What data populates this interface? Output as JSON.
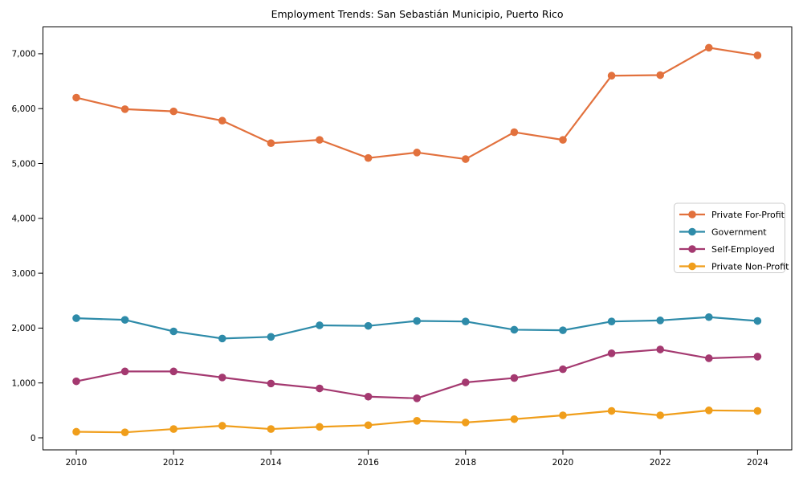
{
  "title": "Employment Trends: San Sebastián Municipio, Puerto Rico",
  "chart_data": {
    "type": "line",
    "title": "Employment Trends: San Sebastián Municipio, Puerto Rico",
    "xlabel": "",
    "ylabel": "",
    "x": [
      2010,
      2011,
      2012,
      2013,
      2014,
      2015,
      2016,
      2017,
      2018,
      2019,
      2020,
      2021,
      2022,
      2023,
      2024
    ],
    "x_tick_labels": [
      "2010",
      "2012",
      "2014",
      "2016",
      "2018",
      "2020",
      "2022",
      "2024"
    ],
    "y_tick_labels": [
      "0",
      "1,000",
      "2,000",
      "3,000",
      "4,000",
      "5,000",
      "6,000",
      "7,000"
    ],
    "ylim": [
      0,
      7000
    ],
    "grid": false,
    "legend_position": "center right",
    "series": [
      {
        "name": "Private For-Profit",
        "color": "#E2713D",
        "values": [
          6200,
          5990,
          5950,
          5780,
          5370,
          5430,
          5100,
          5200,
          5080,
          5570,
          5430,
          6600,
          6610,
          7110,
          6970
        ]
      },
      {
        "name": "Government",
        "color": "#2E8BA9",
        "values": [
          2180,
          2150,
          1940,
          1810,
          1840,
          2050,
          2040,
          2130,
          2120,
          1970,
          1960,
          2120,
          2140,
          2200,
          2130
        ]
      },
      {
        "name": "Self-Employed",
        "color": "#A43970",
        "values": [
          1030,
          1210,
          1210,
          1100,
          990,
          900,
          750,
          720,
          1010,
          1090,
          1250,
          1540,
          1610,
          1450,
          1480
        ]
      },
      {
        "name": "Private Non-Profit",
        "color": "#F09E1B",
        "values": [
          110,
          100,
          160,
          220,
          160,
          200,
          230,
          310,
          280,
          340,
          410,
          490,
          410,
          500,
          490
        ]
      }
    ]
  }
}
